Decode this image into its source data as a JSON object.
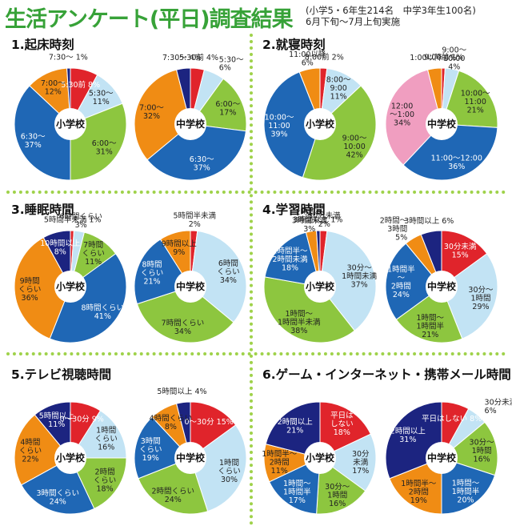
{
  "title": "生活アンケート(平日)調査結果",
  "subtitle": "(小学5・6年生214名　中学3年生100名)\n6月下旬～7月上旬実施",
  "colors": {
    "red": "#e0242b",
    "lightblue": "#c2e3f4",
    "green": "#8dc63f",
    "blue": "#1f67b5",
    "orange": "#f08c14",
    "navy": "#1c2480",
    "pink": "#f09ec0",
    "accent": "#37a238"
  },
  "panels": [
    {
      "title": "1.起床時刻"
    },
    {
      "title": "2.就寝時刻"
    },
    {
      "title": "3.睡眠時間"
    },
    {
      "title": "4.学習時間"
    },
    {
      "title": "5.テレビ視聴時間"
    },
    {
      "title": "6.ゲーム・インターネット・携帯メール時間"
    }
  ],
  "chart_data": [
    {
      "type": "pie",
      "panel": 0,
      "center_label": "小学校",
      "slices": [
        {
          "label": "5:30前",
          "value": 8,
          "color": "red",
          "text": [
            "5:30前 8%"
          ]
        },
        {
          "label": "5:30～",
          "value": 11,
          "color": "lightblue",
          "text": [
            "5:30～",
            "11%"
          ]
        },
        {
          "label": "6:00～",
          "value": 31,
          "color": "green",
          "text": [
            "6:00～",
            "31%"
          ]
        },
        {
          "label": "6:30～",
          "value": 37,
          "color": "blue",
          "text": [
            "6:30～",
            "37%"
          ]
        },
        {
          "label": "7:00～",
          "value": 12,
          "color": "orange",
          "text": [
            "7:00～",
            "12%"
          ]
        },
        {
          "label": "7:30～",
          "value": 1,
          "color": "navy",
          "text": [
            "7:30～ 1%"
          ]
        }
      ]
    },
    {
      "type": "pie",
      "panel": 0,
      "center_label": "中学校",
      "slices": [
        {
          "label": "5:30前",
          "value": 4,
          "color": "red",
          "text": [
            "5:30前 4%"
          ]
        },
        {
          "label": "5:30～",
          "value": 6,
          "color": "lightblue",
          "text": [
            "5:30～",
            "6%"
          ]
        },
        {
          "label": "6:00～",
          "value": 17,
          "color": "green",
          "text": [
            "6:00～",
            "17%"
          ]
        },
        {
          "label": "6:30～",
          "value": 37,
          "color": "blue",
          "text": [
            "6:30～",
            "37%"
          ]
        },
        {
          "label": "7:00～",
          "value": 32,
          "color": "orange",
          "text": [
            "7:00～",
            "32%"
          ]
        },
        {
          "label": "7:30～",
          "value": 4,
          "color": "navy",
          "text": [
            "7:30～ 4%"
          ]
        }
      ]
    },
    {
      "type": "pie",
      "panel": 1,
      "center_label": "小学校",
      "slices": [
        {
          "label": "8:00前",
          "value": 2,
          "color": "red",
          "text": [
            "8:00前 2%"
          ]
        },
        {
          "label": "8:00～9:00",
          "value": 11,
          "color": "lightblue",
          "text": [
            "8:00～",
            "9:00",
            "11%"
          ]
        },
        {
          "label": "9:00～10:00",
          "value": 42,
          "color": "green",
          "text": [
            "9:00～",
            "10:00",
            "42%"
          ]
        },
        {
          "label": "10:00～11:00",
          "value": 39,
          "color": "blue",
          "text": [
            "10:00～",
            "11:00",
            "39%"
          ]
        },
        {
          "label": "11:00以降",
          "value": 6,
          "color": "orange",
          "text": [
            "11:00以降",
            "6%"
          ]
        }
      ]
    },
    {
      "type": "pie",
      "panel": 1,
      "center_label": "中学校",
      "slices": [
        {
          "label": "9:00前",
          "value": 1,
          "color": "red",
          "text": [
            "9:00前 1%"
          ]
        },
        {
          "label": "9:00～10:00",
          "value": 4,
          "color": "lightblue",
          "text": [
            "9:00～",
            "10:00",
            "4%"
          ]
        },
        {
          "label": "10:00～11:00",
          "value": 21,
          "color": "green",
          "text": [
            "10:00～",
            "11:00",
            "21%"
          ]
        },
        {
          "label": "11:00～12:00",
          "value": 36,
          "color": "blue",
          "text": [
            "11:00～12:00",
            "36%"
          ]
        },
        {
          "label": "12:00～1:00",
          "value": 34,
          "color": "pink",
          "text": [
            "12:00",
            "～1:00",
            "34%"
          ]
        },
        {
          "label": "1:00以降",
          "value": 4,
          "color": "orange",
          "text": [
            "1:00以降 4%"
          ]
        }
      ]
    },
    {
      "type": "pie",
      "panel": 2,
      "center_label": "小学校",
      "slices": [
        {
          "label": "5時間半未満",
          "value": 1,
          "color": "red",
          "text": [
            "5時間半未満 1%"
          ]
        },
        {
          "label": "6時間くらい",
          "value": 3,
          "color": "lightblue",
          "text": [
            "6時間くらい",
            "3%"
          ]
        },
        {
          "label": "7時間くらい",
          "value": 11,
          "color": "green",
          "text": [
            "7時間",
            "くらい",
            "11%"
          ]
        },
        {
          "label": "8時間くらい",
          "value": 41,
          "color": "blue",
          "text": [
            "8時間くらい",
            "41%"
          ]
        },
        {
          "label": "9時間くらい",
          "value": 36,
          "color": "orange",
          "text": [
            "9時間",
            "くらい",
            "36%"
          ]
        },
        {
          "label": "10時間以上",
          "value": 8,
          "color": "navy",
          "text": [
            "10時間以上",
            "8%"
          ]
        }
      ]
    },
    {
      "type": "pie",
      "panel": 2,
      "center_label": "中学校",
      "slices": [
        {
          "label": "5時間半未満",
          "value": 2,
          "color": "red",
          "text": [
            "5時間半未満",
            "2%"
          ]
        },
        {
          "label": "6時間くらい",
          "value": 34,
          "color": "lightblue",
          "text": [
            "6時間",
            "くらい",
            "34%"
          ]
        },
        {
          "label": "7時間くらい",
          "value": 34,
          "color": "green",
          "text": [
            "7時間くらい",
            "34%"
          ]
        },
        {
          "label": "8時間くらい",
          "value": 21,
          "color": "blue",
          "text": [
            "8時間",
            "くらい",
            "21%"
          ]
        },
        {
          "label": "9時間以上",
          "value": 9,
          "color": "orange",
          "text": [
            "9時間以上",
            "9%"
          ]
        }
      ]
    },
    {
      "type": "pie",
      "panel": 3,
      "center_label": "小学校",
      "slices": [
        {
          "label": "30分未満",
          "value": 2,
          "color": "red",
          "text": [
            "30分未満",
            "2%"
          ]
        },
        {
          "label": "30分～1時間未満",
          "value": 37,
          "color": "lightblue",
          "text": [
            "30分～",
            "1時間未満",
            "37%"
          ]
        },
        {
          "label": "1時間～1時間半未満",
          "value": 38,
          "color": "green",
          "text": [
            "1時間～",
            "1時間半未満",
            "38%"
          ]
        },
        {
          "label": "1時間半～2時間未満",
          "value": 18,
          "color": "blue",
          "text": [
            "1時間半～",
            "2時間未満",
            "18%"
          ]
        },
        {
          "label": "2時間～3時間未満",
          "value": 3,
          "color": "orange",
          "text": [
            "2時間～",
            "3時間未満",
            "3%"
          ]
        },
        {
          "label": "3時間以上",
          "value": 1,
          "color": "navy",
          "text": [
            "3時間以上 1%"
          ]
        }
      ]
    },
    {
      "type": "pie",
      "panel": 3,
      "center_label": "中学校",
      "slices": [
        {
          "label": "30分未満",
          "value": 15,
          "color": "red",
          "text": [
            "30分未満",
            "15%"
          ]
        },
        {
          "label": "30分～1時間",
          "value": 29,
          "color": "lightblue",
          "text": [
            "30分～",
            "1時間",
            "29%"
          ]
        },
        {
          "label": "1時間～1時間半",
          "value": 21,
          "color": "green",
          "text": [
            "1時間～",
            "1時間半",
            "21%"
          ]
        },
        {
          "label": "1時間半～2時間",
          "value": 24,
          "color": "blue",
          "text": [
            "1時間半",
            "～",
            "2時間",
            "24%"
          ]
        },
        {
          "label": "2時間～3時間",
          "value": 5,
          "color": "orange",
          "text": [
            "2時間～",
            "3時間",
            "5%"
          ]
        },
        {
          "label": "3時間以上",
          "value": 6,
          "color": "navy",
          "text": [
            "3時間以上 6%"
          ]
        }
      ]
    },
    {
      "type": "pie",
      "panel": 4,
      "center_label": "小学校",
      "slices": [
        {
          "label": "0～30分",
          "value": 9,
          "color": "red",
          "text": [
            "0～30分 9%"
          ]
        },
        {
          "label": "1時間くらい",
          "value": 16,
          "color": "lightblue",
          "text": [
            "1時間",
            "くらい",
            "16%"
          ]
        },
        {
          "label": "2時間くらい",
          "value": 18,
          "color": "green",
          "text": [
            "2時間",
            "くらい",
            "18%"
          ]
        },
        {
          "label": "3時間くらい",
          "value": 24,
          "color": "blue",
          "text": [
            "3時間くらい",
            "24%"
          ]
        },
        {
          "label": "4時間くらい",
          "value": 22,
          "color": "orange",
          "text": [
            "4時間",
            "くらい",
            "22%"
          ]
        },
        {
          "label": "5時間以上",
          "value": 11,
          "color": "navy",
          "text": [
            "5時間以上",
            "11%"
          ]
        }
      ]
    },
    {
      "type": "pie",
      "panel": 4,
      "center_label": "中学校",
      "slices": [
        {
          "label": "0～30分",
          "value": 15,
          "color": "red",
          "text": [
            "0～30分 15%"
          ]
        },
        {
          "label": "1時間くらい",
          "value": 30,
          "color": "lightblue",
          "text": [
            "1時間",
            "くらい",
            "30%"
          ]
        },
        {
          "label": "2時間くらい",
          "value": 24,
          "color": "green",
          "text": [
            "2時間くらい",
            "24%"
          ]
        },
        {
          "label": "3時間くらい",
          "value": 19,
          "color": "blue",
          "text": [
            "3時間",
            "くらい",
            "19%"
          ]
        },
        {
          "label": "4時間くらい",
          "value": 8,
          "color": "orange",
          "text": [
            "4時間くらい",
            "8%"
          ]
        },
        {
          "label": "5時間以上",
          "value": 4,
          "color": "navy",
          "text": [
            "5時間以上 4%"
          ]
        }
      ]
    },
    {
      "type": "pie",
      "panel": 5,
      "center_label": "小学校",
      "slices": [
        {
          "label": "平日はしない",
          "value": 18,
          "color": "red",
          "text": [
            "平日は",
            "しない",
            "18%"
          ]
        },
        {
          "label": "30分未満",
          "value": 17,
          "color": "lightblue",
          "text": [
            "30分",
            "未満",
            "17%"
          ]
        },
        {
          "label": "30分～1時間",
          "value": 16,
          "color": "green",
          "text": [
            "30分～",
            "1時間",
            "16%"
          ]
        },
        {
          "label": "1時間～1時間半",
          "value": 17,
          "color": "blue",
          "text": [
            "1時間～",
            "1時間半",
            "17%"
          ]
        },
        {
          "label": "1時間半～2時間",
          "value": 11,
          "color": "orange",
          "text": [
            "1時間半～",
            "2時間",
            "11%"
          ]
        },
        {
          "label": "2時間以上",
          "value": 21,
          "color": "navy",
          "text": [
            "2時間以上",
            "21%"
          ]
        }
      ]
    },
    {
      "type": "pie",
      "panel": 5,
      "center_label": "中学校",
      "slices": [
        {
          "label": "平日はしない",
          "value": 8,
          "color": "red",
          "text": [
            "平日はしない 8%"
          ]
        },
        {
          "label": "30分未満",
          "value": 6,
          "color": "lightblue",
          "text": [
            "30分未満",
            "6%"
          ]
        },
        {
          "label": "30分～1時間",
          "value": 16,
          "color": "green",
          "text": [
            "30分～",
            "1時間",
            "16%"
          ]
        },
        {
          "label": "1時間～1時間半",
          "value": 20,
          "color": "blue",
          "text": [
            "1時間～",
            "1時間半",
            "20%"
          ]
        },
        {
          "label": "1時間半～2時間",
          "value": 19,
          "color": "orange",
          "text": [
            "1時間半～",
            "2時間",
            "19%"
          ]
        },
        {
          "label": "2時間以上",
          "value": 31,
          "color": "navy",
          "text": [
            "2時間以上",
            "31%"
          ]
        }
      ]
    }
  ]
}
